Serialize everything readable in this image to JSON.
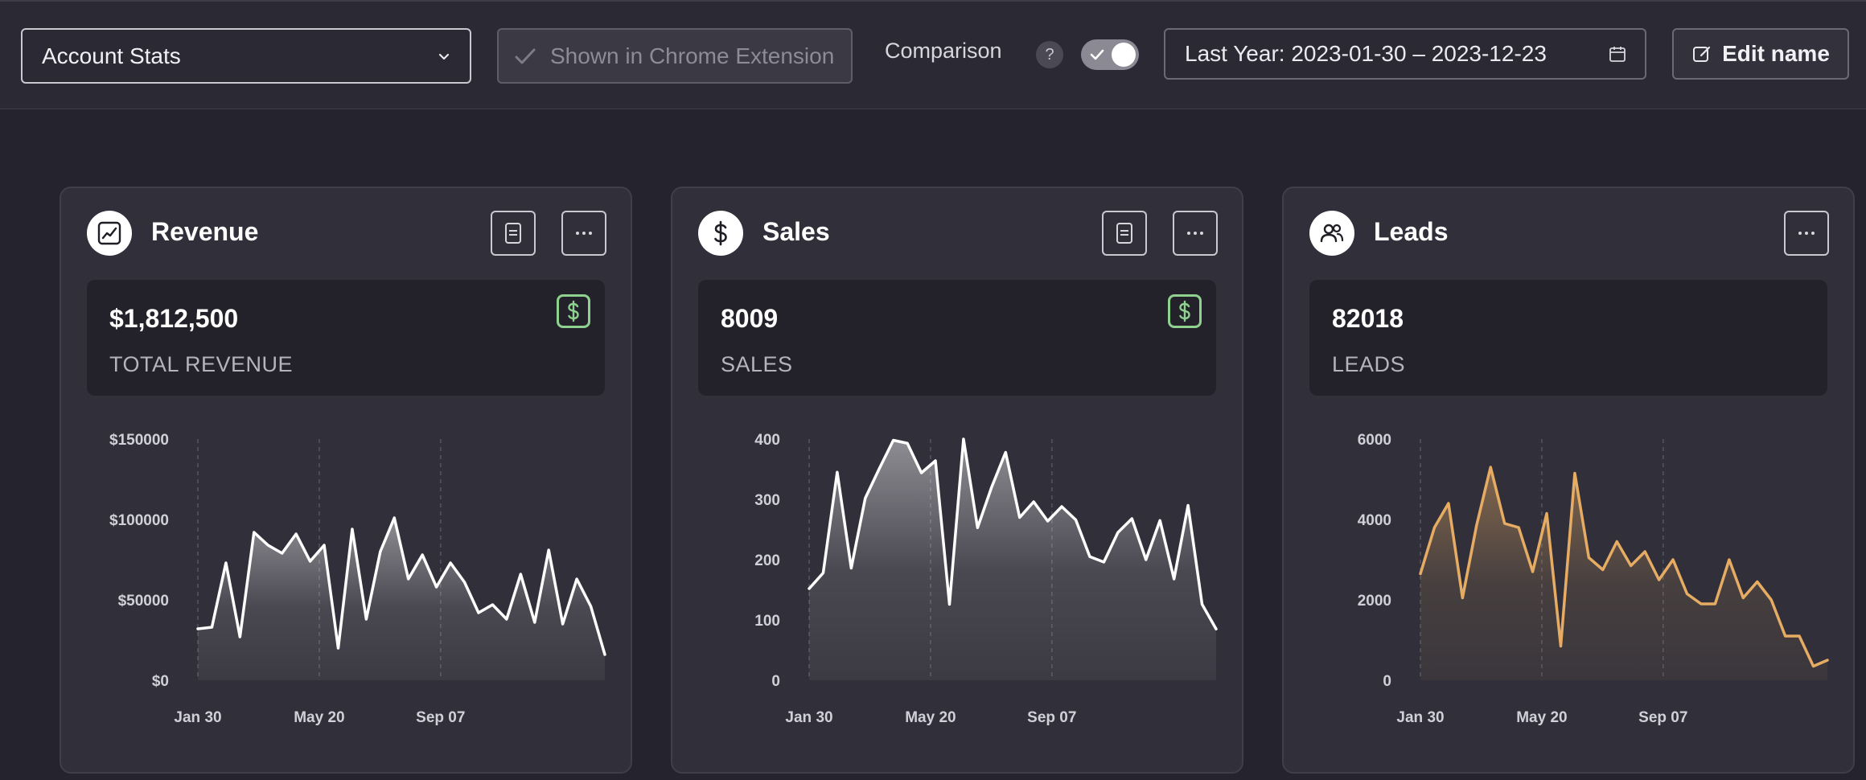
{
  "toolbar": {
    "dashboard_select": "Account Stats",
    "extension_button": "Shown in Chrome Extension",
    "comparison_label": "Comparison",
    "help_glyph": "?",
    "comparison_enabled": true,
    "date_range": "Last Year: 2023-01-30 – 2023-12-23",
    "edit_name_label": "Edit name"
  },
  "colors": {
    "accent_white": "#ffffff",
    "leads_line": "#e7ac63",
    "dollar_badge": "#8fd18f"
  },
  "cards": [
    {
      "title": "Revenue",
      "icon": "trend-chart-icon",
      "value": "$1,812,500",
      "label": "TOTAL REVENUE",
      "has_notes_button": true,
      "has_dollar_badge": true
    },
    {
      "title": "Sales",
      "icon": "dollar-circle-icon",
      "value": "8009",
      "label": "SALES",
      "has_notes_button": true,
      "has_dollar_badge": true
    },
    {
      "title": "Leads",
      "icon": "users-icon",
      "value": "82018",
      "label": "LEADS",
      "has_notes_button": false,
      "has_dollar_badge": false
    }
  ],
  "chart_data": [
    {
      "type": "area",
      "title": "",
      "xlabel": "",
      "ylabel": "",
      "ylim": [
        0,
        150000
      ],
      "yticks": [
        "$0",
        "$50000",
        "$100000",
        "$150000"
      ],
      "ytick_values": [
        0,
        50000,
        100000,
        150000
      ],
      "xticks": [
        "Jan 30",
        "May 20",
        "Sep 07"
      ],
      "xtick_positions": [
        0,
        16,
        32
      ],
      "grid": "vertical-dashed",
      "series": [
        {
          "color": "#ffffff",
          "values": [
            32000,
            33000,
            73000,
            27000,
            92000,
            84000,
            79000,
            91000,
            74000,
            84000,
            20000,
            94000,
            38000,
            80000,
            101000,
            63000,
            78000,
            58000,
            73000,
            61000,
            42000,
            47000,
            38000,
            66000,
            36000,
            81000,
            35000,
            63000,
            46000,
            16000
          ]
        }
      ]
    },
    {
      "type": "area",
      "title": "",
      "xlabel": "",
      "ylabel": "",
      "ylim": [
        0,
        400
      ],
      "yticks": [
        "0",
        "100",
        "200",
        "300",
        "400"
      ],
      "ytick_values": [
        0,
        100,
        200,
        300,
        400
      ],
      "xticks": [
        "Jan 30",
        "May 20",
        "Sep 07"
      ],
      "xtick_positions": [
        0,
        16,
        32
      ],
      "grid": "vertical-dashed",
      "series": [
        {
          "color": "#ffffff",
          "values": [
            152,
            178,
            345,
            186,
            302,
            351,
            398,
            393,
            344,
            364,
            126,
            400,
            253,
            320,
            378,
            270,
            296,
            264,
            288,
            266,
            205,
            196,
            245,
            268,
            200,
            265,
            168,
            290,
            126,
            85
          ]
        }
      ]
    },
    {
      "type": "area",
      "title": "",
      "xlabel": "",
      "ylabel": "",
      "ylim": [
        0,
        6000
      ],
      "yticks": [
        "0",
        "2000",
        "4000",
        "6000"
      ],
      "ytick_values": [
        0,
        2000,
        4000,
        6000
      ],
      "xticks": [
        "Jan 30",
        "May 20",
        "Sep 07"
      ],
      "xtick_positions": [
        0,
        16,
        32
      ],
      "grid": "vertical-dashed",
      "series": [
        {
          "color": "#e7ac63",
          "values": [
            2650,
            3800,
            4400,
            2050,
            3850,
            5300,
            3900,
            3800,
            2700,
            4150,
            850,
            5150,
            3050,
            2750,
            3450,
            2850,
            3200,
            2500,
            3000,
            2150,
            1900,
            1900,
            3000,
            2050,
            2450,
            2000,
            1100,
            1100,
            350,
            500
          ]
        }
      ]
    }
  ]
}
